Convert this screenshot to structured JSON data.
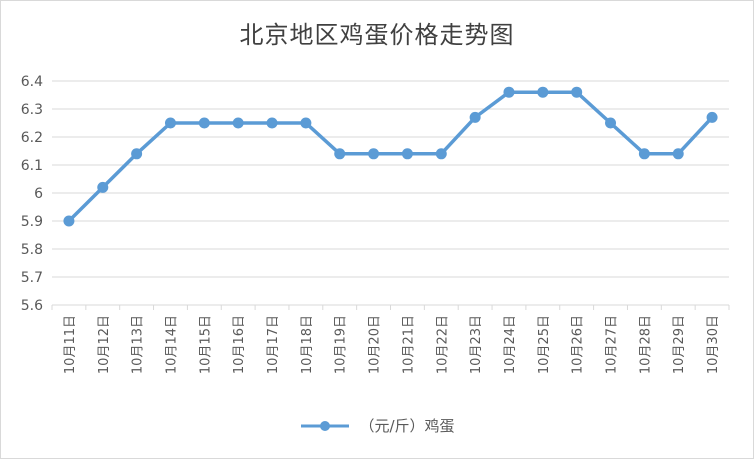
{
  "chart_data": {
    "type": "line",
    "title": "北京地区鸡蛋价格走势图",
    "categories": [
      "10月11日",
      "10月12日",
      "10月13日",
      "10月14日",
      "10月15日",
      "10月16日",
      "10月17日",
      "10月18日",
      "10月19日",
      "10月20日",
      "10月21日",
      "10月22日",
      "10月23日",
      "10月24日",
      "10月25日",
      "10月26日",
      "10月27日",
      "10月28日",
      "10月29日",
      "10月30日"
    ],
    "series": [
      {
        "name": "（元/斤）鸡蛋",
        "values": [
          5.9,
          6.02,
          6.14,
          6.25,
          6.25,
          6.25,
          6.25,
          6.25,
          6.14,
          6.14,
          6.14,
          6.14,
          6.27,
          6.36,
          6.36,
          6.36,
          6.25,
          6.14,
          6.14,
          6.27
        ]
      }
    ],
    "yticks": [
      "5.6",
      "5.7",
      "5.8",
      "5.9",
      "6",
      "6.1",
      "6.2",
      "6.3",
      "6.4"
    ],
    "ylim": [
      5.6,
      6.4
    ],
    "grid": true,
    "legend_position": "bottom",
    "colors": {
      "series": "#5b9bd5",
      "grid": "#d9d9d9",
      "text": "#595959",
      "title": "#404040"
    }
  }
}
